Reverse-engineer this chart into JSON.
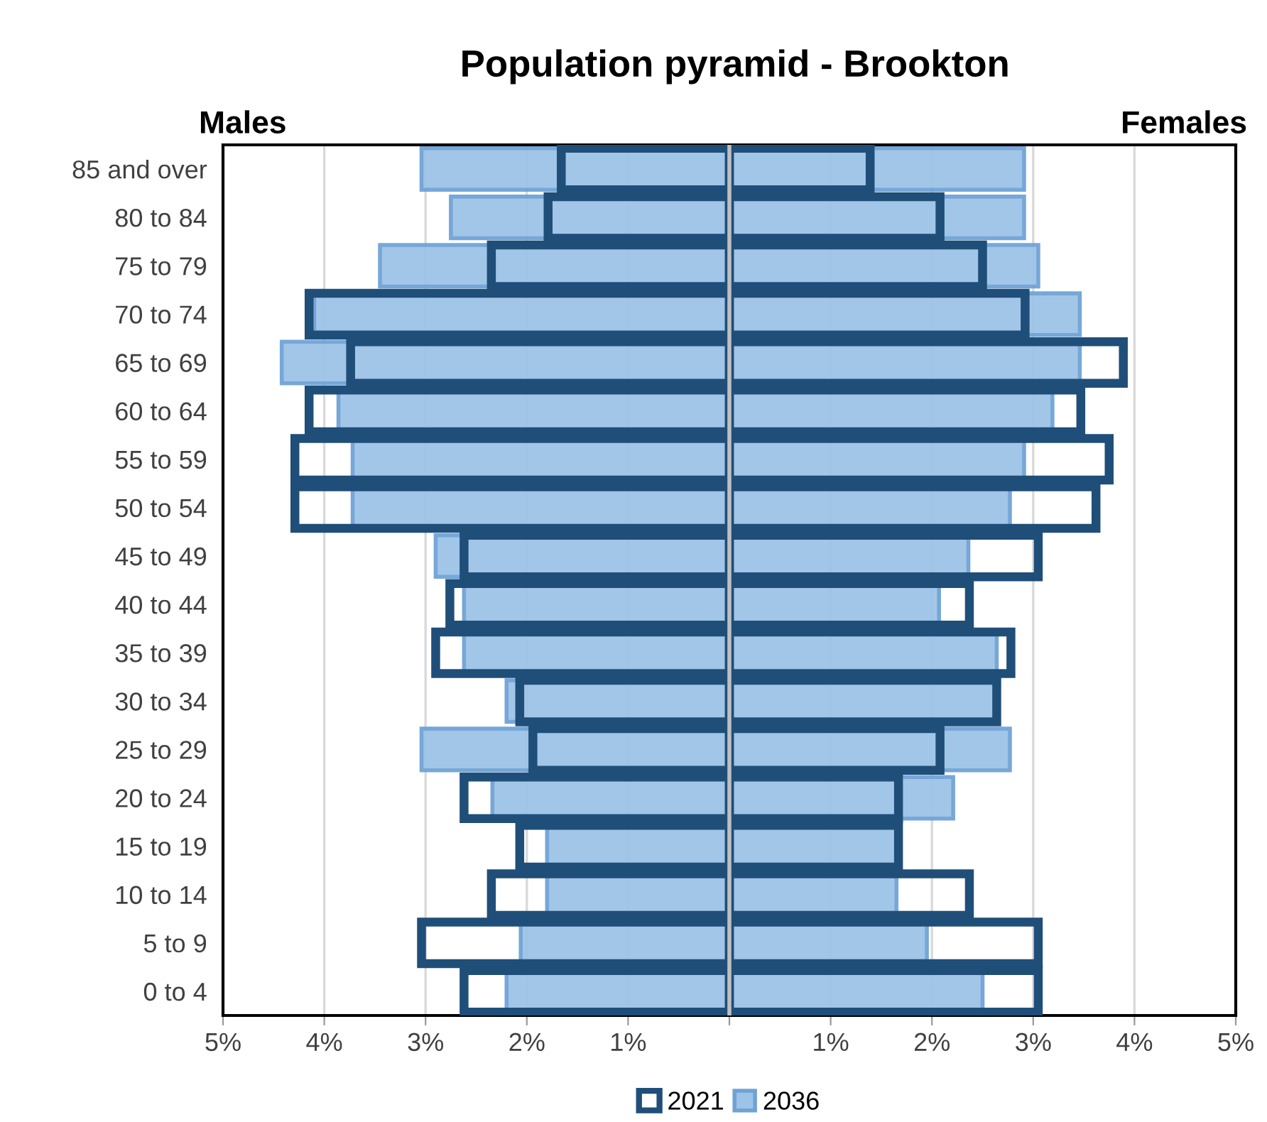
{
  "chart_data": {
    "type": "bar",
    "orientation": "horizontal",
    "title": "Population pyramid - Brookton",
    "annotations": [
      "Males",
      "Females"
    ],
    "categories": [
      "85 and over",
      "80 to 84",
      "75 to 79",
      "70 to 74",
      "65 to 69",
      "60 to 64",
      "55 to 59",
      "50 to 54",
      "45 to 49",
      "40 to 44",
      "35 to 39",
      "30 to 34",
      "25 to 29",
      "20 to 24",
      "15 to 19",
      "10 to 14",
      "5 to 9",
      "0 to 4"
    ],
    "series": [
      {
        "name": "2036",
        "color": "#9dc3e6",
        "values": [
          -3.04,
          -2.75,
          -3.45,
          -4.1,
          -4.42,
          -3.86,
          -3.72,
          -3.72,
          -2.9,
          -2.62,
          -2.62,
          -2.2,
          -3.04,
          -2.34,
          -1.8,
          -1.8,
          -2.06,
          -2.2
        ]
      },
      {
        "color": "#9dc3e6",
        "values": [
          2.91,
          2.91,
          3.05,
          3.46,
          3.46,
          3.19,
          2.91,
          2.77,
          2.36,
          2.07,
          2.64,
          2.62,
          2.77,
          2.21,
          1.65,
          1.65,
          1.95,
          2.5
        ]
      },
      {
        "name": "2021",
        "color": "#1f4e79",
        "values": [
          -1.66,
          -1.79,
          -2.35,
          -4.15,
          -3.74,
          -4.15,
          -4.29,
          -4.29,
          -2.62,
          -2.76,
          -2.9,
          -2.07,
          -1.94,
          -2.62,
          -2.07,
          -2.35,
          -3.04,
          -2.62
        ]
      },
      {
        "color": "#1f4e79",
        "values": [
          1.39,
          2.08,
          2.5,
          2.92,
          3.89,
          3.47,
          3.75,
          3.62,
          3.05,
          2.37,
          2.78,
          2.64,
          2.08,
          1.67,
          1.67,
          2.37,
          3.05,
          3.05
        ]
      }
    ],
    "xlim": [
      -5,
      5
    ],
    "xticks": [
      {
        "value": -5,
        "label": "5%"
      },
      {
        "value": -4,
        "label": "4%"
      },
      {
        "value": -3,
        "label": "3%"
      },
      {
        "value": -2,
        "label": "2%"
      },
      {
        "value": -1,
        "label": "1%"
      },
      {
        "value": 0,
        "label": null
      },
      {
        "value": 1,
        "label": "1%"
      },
      {
        "value": 2,
        "label": "2%"
      },
      {
        "value": 3,
        "label": "3%"
      },
      {
        "value": 4,
        "label": "4%"
      },
      {
        "value": 5,
        "label": "5%"
      }
    ],
    "ref_lines": [
      {
        "axis": "x",
        "value": 0,
        "color": "#bfbfbf"
      }
    ],
    "grid": "x",
    "legend": "bottom"
  }
}
